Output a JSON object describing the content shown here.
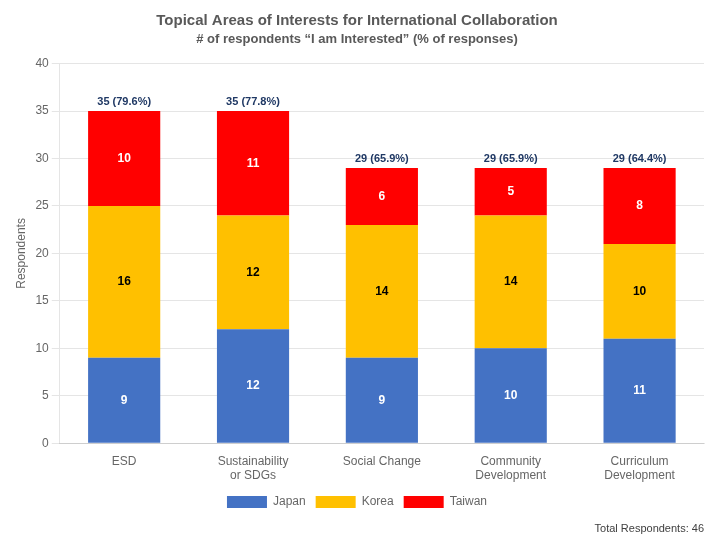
{
  "chart_data": {
    "type": "bar",
    "stacked": true,
    "title": "Topical Areas of Interests for International Collaboration",
    "subtitle": "# of respondents “I am Interested” (% of responses)",
    "categories": [
      "ESD",
      "Sustainability\nor SDGs",
      "Social Change",
      "Community\nDevelopment",
      "Curriculum\nDevelopment"
    ],
    "series": [
      {
        "name": "Japan",
        "color": "#4472C4",
        "values": [
          9,
          12,
          9,
          10,
          11
        ]
      },
      {
        "name": "Korea",
        "color": "#FFC000",
        "values": [
          16,
          12,
          14,
          14,
          10
        ]
      },
      {
        "name": "Taiwan",
        "color": "#FF0000",
        "values": [
          10,
          11,
          6,
          5,
          8
        ]
      }
    ],
    "total_labels": [
      "35 (79.6%)",
      "35 (77.8%)",
      "29 (65.9%)",
      "29 (65.9%)",
      "29 (64.4%)"
    ],
    "ylabel": "Respondents",
    "ylim": [
      0,
      40
    ],
    "yticks": [
      0,
      5,
      10,
      15,
      20,
      25,
      30,
      35,
      40
    ],
    "grid": true,
    "legend": "bottom",
    "data_labels": true,
    "footnote": "Total Respondents: 46"
  }
}
